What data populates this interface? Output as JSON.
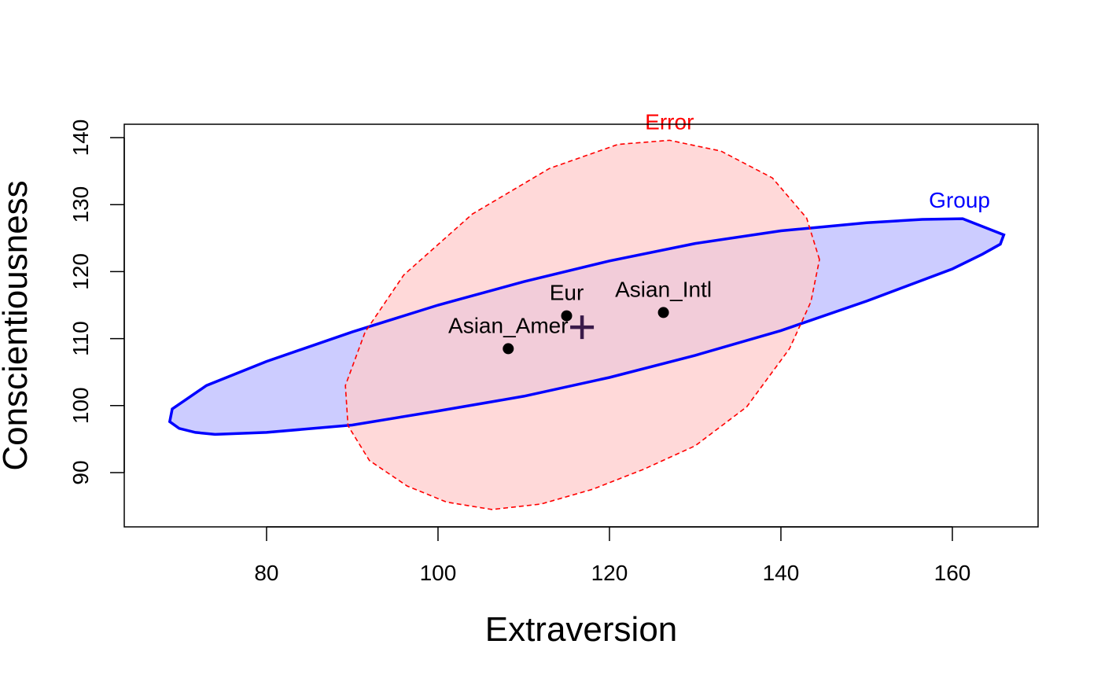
{
  "chart_data": {
    "type": "scatter",
    "title": "",
    "xlabel": "Extraversion",
    "ylabel": "Conscientiousness",
    "xlim": [
      63.4,
      170.0
    ],
    "ylim": [
      81.9,
      142.0
    ],
    "x_ticks": [
      80,
      100,
      120,
      140,
      160
    ],
    "y_ticks": [
      90,
      100,
      110,
      120,
      130,
      140
    ],
    "x_tick_labels": [
      "80",
      "100",
      "120",
      "140",
      "160"
    ],
    "y_tick_labels": [
      "90",
      "100",
      "110",
      "120",
      "130",
      "140"
    ],
    "grid": false,
    "points": [
      {
        "label": "Asian_Amer",
        "x": 108.2,
        "y": 108.5
      },
      {
        "label": "Eur",
        "x": 115.0,
        "y": 113.4
      },
      {
        "label": "Asian_Intl",
        "x": 126.3,
        "y": 113.9
      }
    ],
    "grand_mean": {
      "x": 116.8,
      "y": 111.7
    },
    "ellipses": [
      {
        "name": "Group",
        "label": "Group",
        "color": "#0000ff",
        "fill": "#ccccff",
        "line_style": "solid",
        "center": [
          116.8,
          111.7
        ],
        "outline": [
          [
            166,
            125.5
          ],
          [
            161.2,
            127.9
          ],
          [
            156.5,
            127.8
          ],
          [
            150,
            127.3
          ],
          [
            140,
            126.1
          ],
          [
            130,
            124.2
          ],
          [
            120,
            121.6
          ],
          [
            110,
            118.5
          ],
          [
            100,
            115
          ],
          [
            90,
            111
          ],
          [
            80,
            106.6
          ],
          [
            73,
            103
          ],
          [
            69,
            99.5
          ],
          [
            68.7,
            97.6
          ],
          [
            69.8,
            96.6
          ],
          [
            71.7,
            96
          ],
          [
            74,
            95.7
          ],
          [
            80,
            96
          ],
          [
            90,
            97.1
          ],
          [
            100,
            99.2
          ],
          [
            110,
            101.4
          ],
          [
            120,
            104.2
          ],
          [
            130,
            107.5
          ],
          [
            140,
            111.2
          ],
          [
            150,
            115.6
          ],
          [
            160,
            120.4
          ],
          [
            163.5,
            122.6
          ],
          [
            165.6,
            124.1
          ],
          [
            166,
            125.5
          ]
        ]
      },
      {
        "name": "Error",
        "label": "Error",
        "color": "#ff0000",
        "fill": "#ffcccc",
        "line_style": "dashed",
        "center": [
          116.8,
          111.7
        ],
        "outline": [
          [
            144.5,
            121.8
          ],
          [
            143,
            128
          ],
          [
            139,
            134
          ],
          [
            133,
            138
          ],
          [
            127,
            139.6
          ],
          [
            121,
            139
          ],
          [
            113,
            135.4
          ],
          [
            104,
            128.6
          ],
          [
            96,
            119.5
          ],
          [
            91.5,
            111
          ],
          [
            89.2,
            103
          ],
          [
            89.5,
            97
          ],
          [
            92,
            91.8
          ],
          [
            96.4,
            88
          ],
          [
            101,
            85.6
          ],
          [
            106.3,
            84.5
          ],
          [
            112,
            85.3
          ],
          [
            118,
            87.5
          ],
          [
            124,
            90.5
          ],
          [
            130,
            94
          ],
          [
            136,
            99.8
          ],
          [
            141,
            108.5
          ],
          [
            143.5,
            115.5
          ],
          [
            144.5,
            121.8
          ]
        ]
      }
    ]
  }
}
